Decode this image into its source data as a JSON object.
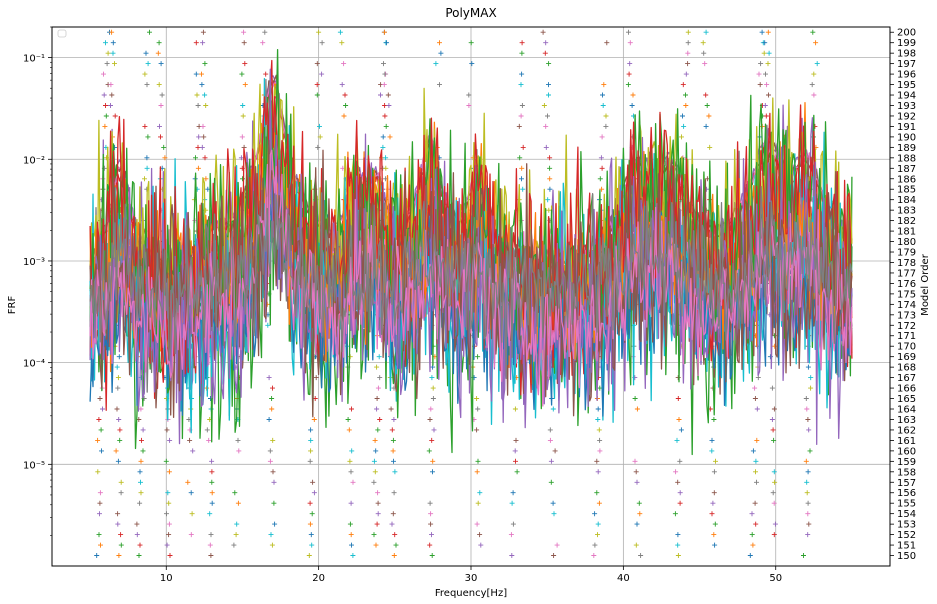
{
  "chart_data": {
    "type": "line",
    "title": "PolyMAX",
    "xlabel": "Frequency[Hz]",
    "ylabel": "FRF",
    "y2label": "Model Order",
    "xlim": [
      2.5,
      57.5
    ],
    "ylim": [
      1e-06,
      0.2
    ],
    "yscale": "log",
    "y2lim": [
      149,
      200.5
    ],
    "grid": true,
    "legend_placement": "upper-left",
    "x_ticks": [
      10,
      20,
      30,
      40,
      50
    ],
    "x_tick_labels": [
      "10",
      "20",
      "30",
      "40",
      "50"
    ],
    "y_ticks": [
      1e-05,
      0.0001,
      0.001,
      0.01,
      0.1
    ],
    "y_tick_labels": [
      "10⁻⁵",
      "10⁻⁴",
      "10⁻³",
      "10⁻²",
      "10⁻¹"
    ],
    "y2_ticks": [
      150,
      151,
      152,
      153,
      154,
      155,
      156,
      157,
      158,
      159,
      160,
      161,
      162,
      163,
      164,
      165,
      166,
      167,
      168,
      169,
      170,
      171,
      172,
      173,
      174,
      175,
      176,
      177,
      178,
      179,
      180,
      181,
      182,
      183,
      184,
      185,
      186,
      187,
      188,
      189,
      190,
      191,
      192,
      193,
      194,
      195,
      196,
      197,
      198,
      199,
      200
    ],
    "frequency_range": [
      5,
      55
    ],
    "resonance_peaks": [
      {
        "x": 7.0,
        "y": 0.012
      },
      {
        "x": 13.0,
        "y": 0.0018
      },
      {
        "x": 17.0,
        "y": 0.09
      },
      {
        "x": 22.5,
        "y": 0.008
      },
      {
        "x": 23.7,
        "y": 0.009
      },
      {
        "x": 27.3,
        "y": 0.022
      },
      {
        "x": 30.5,
        "y": 0.012
      },
      {
        "x": 41.0,
        "y": 0.012
      },
      {
        "x": 43.0,
        "y": 0.012
      },
      {
        "x": 49.5,
        "y": 0.02
      },
      {
        "x": 52.0,
        "y": 0.013
      }
    ],
    "stabilization_poles": [
      {
        "x": 5.5,
        "orders": [
          150,
          200
        ]
      },
      {
        "x": 7.0,
        "orders": [
          150,
          200
        ]
      },
      {
        "x": 8.2,
        "orders": [
          150,
          200
        ]
      },
      {
        "x": 10.2,
        "orders": [
          150,
          200
        ]
      },
      {
        "x": 11.5,
        "orders": [
          150,
          200
        ]
      },
      {
        "x": 13.0,
        "orders": [
          150,
          200
        ]
      },
      {
        "x": 14.5,
        "orders": [
          150,
          200
        ]
      },
      {
        "x": 17.0,
        "orders": [
          150,
          200
        ]
      },
      {
        "x": 19.5,
        "orders": [
          150,
          200
        ]
      },
      {
        "x": 22.2,
        "orders": [
          150,
          200
        ]
      },
      {
        "x": 23.7,
        "orders": [
          150,
          200
        ]
      },
      {
        "x": 25.0,
        "orders": [
          150,
          200
        ]
      },
      {
        "x": 27.3,
        "orders": [
          150,
          200
        ]
      },
      {
        "x": 30.5,
        "orders": [
          150,
          200
        ]
      },
      {
        "x": 32.8,
        "orders": [
          150,
          200
        ]
      },
      {
        "x": 35.5,
        "orders": [
          150,
          200
        ]
      },
      {
        "x": 38.2,
        "orders": [
          150,
          200
        ]
      },
      {
        "x": 41.0,
        "orders": [
          150,
          200
        ]
      },
      {
        "x": 43.5,
        "orders": [
          150,
          200
        ]
      },
      {
        "x": 46.0,
        "orders": [
          150,
          200
        ]
      },
      {
        "x": 48.5,
        "orders": [
          150,
          200
        ]
      },
      {
        "x": 50.0,
        "orders": [
          150,
          200
        ]
      },
      {
        "x": 52.0,
        "orders": [
          150,
          200
        ]
      }
    ],
    "series_colors": [
      "#1f77b4",
      "#ff7f0e",
      "#2ca02c",
      "#d62728",
      "#9467bd",
      "#8c564b",
      "#e377c2",
      "#7f7f7f",
      "#bcbd22",
      "#17becf"
    ],
    "grid_color": "#b0b0b0"
  }
}
